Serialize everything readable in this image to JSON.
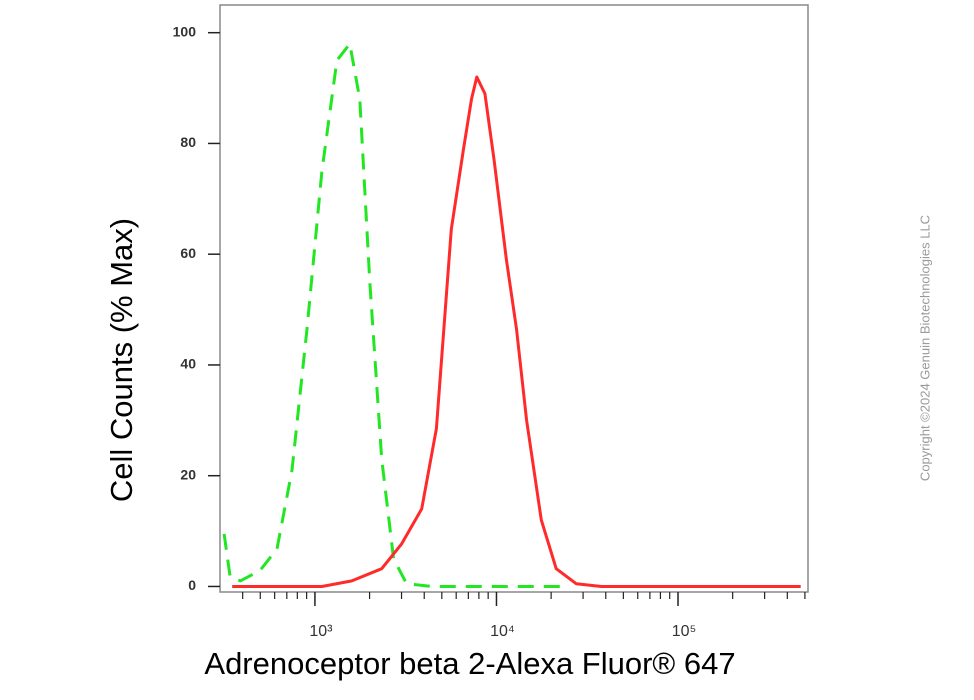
{
  "chart_data": {
    "type": "line",
    "xlabel": "Adrenoceptor beta 2-Alexa Fluor® 647",
    "ylabel": "Cell Counts (% Max)",
    "watermark": "Copyright ©2024 Genuin Biotechnologies LLC",
    "xscale": "log",
    "xlim": [
      300,
      520000
    ],
    "ylim": [
      -1,
      105
    ],
    "xticks": [
      {
        "value": 1000,
        "label": "10³"
      },
      {
        "value": 10000,
        "label": "10⁴"
      },
      {
        "value": 100000,
        "label": "10⁵"
      }
    ],
    "xminorticks": [
      400,
      500,
      600,
      700,
      800,
      900,
      2000,
      3000,
      4000,
      5000,
      6000,
      7000,
      8000,
      9000,
      20000,
      30000,
      40000,
      50000,
      60000,
      70000,
      80000,
      90000,
      200000,
      300000,
      400000,
      500000
    ],
    "yticks": [
      0,
      20,
      40,
      60,
      80,
      100
    ],
    "series": [
      {
        "color": "#22e622",
        "dash": "dashed",
        "x": [
          316,
          341,
          388,
          499,
          618,
          748,
          904,
          1093,
          1321,
          1556,
          1766,
          2005,
          2333,
          2714,
          3200,
          4390,
          22700
        ],
        "values": [
          9.5,
          1.8,
          1,
          2.9,
          6.8,
          21,
          46.5,
          75,
          95,
          98,
          88,
          55,
          23,
          5,
          0.5,
          0,
          0
        ]
      },
      {
        "color": "#ff2a2a",
        "dash": "solid",
        "x": [
          350,
          1093,
          1596,
          2333,
          3006,
          3873,
          4670,
          5640,
          6580,
          7290,
          7790,
          8640,
          9700,
          11340,
          12900,
          14660,
          17650,
          21330,
          27490,
          37850,
          474000
        ],
        "values": [
          0,
          0,
          1,
          3.2,
          7.7,
          14,
          28.5,
          64.5,
          79,
          88,
          92,
          89,
          77,
          59,
          46.5,
          30,
          12,
          3.2,
          0.5,
          0,
          0
        ]
      }
    ]
  }
}
